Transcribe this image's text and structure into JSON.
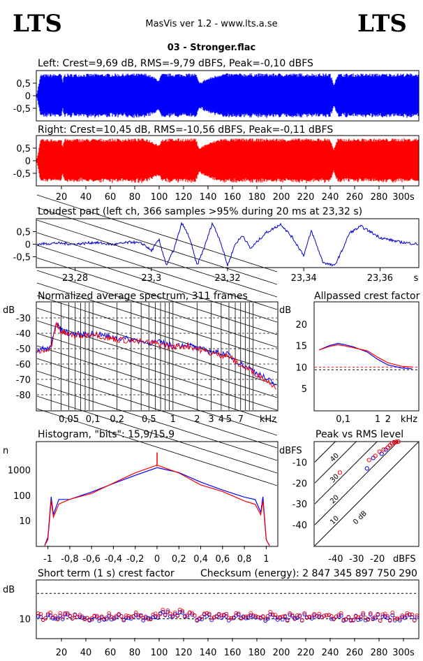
{
  "header": {
    "logo_left": "LTS",
    "logo_right": "LTS",
    "app_title": "MasVis ver 1.2 - www.lts.a.se",
    "filename": "03 - Stronger.flac"
  },
  "colors": {
    "left_channel": "#0000ff",
    "right_channel": "#ff0000",
    "loudest": "#0000cc",
    "dashed": "#000000"
  },
  "chart_data": [
    {
      "id": "left-waveform",
      "type": "area",
      "title": "Left: Crest=9,69 dB, RMS=-9,79 dBFS, Peak=-0,10 dBFS",
      "yticks": [
        "0,5",
        "0",
        "-0,5"
      ],
      "ylim": [
        -1,
        1
      ],
      "xlim": [
        0,
        312
      ],
      "series": [
        {
          "name": "Left",
          "envelope": [
            [
              0,
              0.1
            ],
            [
              3,
              0.93
            ],
            [
              20,
              0.96
            ],
            [
              21,
              0.55
            ],
            [
              22,
              0.95
            ],
            [
              90,
              0.97
            ],
            [
              100,
              0.7
            ],
            [
              102,
              0.96
            ],
            [
              130,
              0.97
            ],
            [
              133,
              0.55
            ],
            [
              137,
              0.7
            ],
            [
              150,
              0.97
            ],
            [
              240,
              0.97
            ],
            [
              243,
              0.5
            ],
            [
              246,
              0.96
            ],
            [
              312,
              0.97
            ]
          ]
        }
      ]
    },
    {
      "id": "right-waveform",
      "type": "area",
      "title": "Right: Crest=10,45 dB, RMS=-10,56 dBFS, Peak=-0,11 dBFS",
      "yticks": [
        "0,5",
        "0",
        "-0,5"
      ],
      "ylim": [
        -1,
        1
      ],
      "xlim": [
        0,
        312
      ],
      "xticks": [
        "20",
        "40",
        "60",
        "80",
        "100",
        "120",
        "140",
        "160",
        "180",
        "200",
        "220",
        "240",
        "260",
        "280",
        "300s"
      ],
      "series": [
        {
          "name": "Right",
          "envelope": [
            [
              0,
              0.1
            ],
            [
              3,
              0.93
            ],
            [
              20,
              0.96
            ],
            [
              21,
              0.55
            ],
            [
              22,
              0.95
            ],
            [
              90,
              0.97
            ],
            [
              100,
              0.7
            ],
            [
              102,
              0.96
            ],
            [
              130,
              0.97
            ],
            [
              133,
              0.55
            ],
            [
              137,
              0.7
            ],
            [
              150,
              0.97
            ],
            [
              240,
              0.97
            ],
            [
              243,
              0.5
            ],
            [
              246,
              0.96
            ],
            [
              312,
              0.97
            ]
          ]
        }
      ]
    },
    {
      "id": "loudest-part",
      "type": "line",
      "title": "Loudest part (left  ch, 366 samples >95% during 20 ms at 23,32 s)",
      "xlim": [
        23.27,
        23.37
      ],
      "ylim": [
        -1,
        1
      ],
      "yticks": [
        "0,5",
        "0",
        "-0,5"
      ],
      "xticks": [
        "23,28",
        "23,3",
        "23,32",
        "23,34",
        "23,36",
        "s"
      ],
      "series": [
        {
          "name": "left",
          "x": [
            23.27,
            23.275,
            23.28,
            23.285,
            23.29,
            23.295,
            23.298,
            23.3,
            23.302,
            23.304,
            23.306,
            23.308,
            23.31,
            23.312,
            23.314,
            23.316,
            23.318,
            23.32,
            23.322,
            23.324,
            23.326,
            23.33,
            23.334,
            23.337,
            23.34,
            23.342,
            23.345,
            23.348,
            23.35,
            23.352,
            23.355,
            23.358,
            23.36,
            23.365,
            23.37
          ],
          "y": [
            0.0,
            0.05,
            0.0,
            0.08,
            -0.02,
            0.1,
            0.0,
            -0.3,
            0.2,
            -0.95,
            -0.2,
            0.95,
            0.3,
            -0.95,
            -0.1,
            0.95,
            0.2,
            -0.95,
            0.0,
            0.4,
            -0.2,
            0.5,
            0.9,
            0.3,
            -0.5,
            0.6,
            -0.8,
            -0.98,
            -0.3,
            0.5,
            0.8,
            0.5,
            0.3,
            0.1,
            0.0
          ]
        }
      ]
    },
    {
      "id": "spectrum",
      "type": "line",
      "title": "Normalized average spectrum, 311 frames",
      "ylabel": "dB",
      "ylim": [
        -90,
        -20
      ],
      "yticks": [
        "-30",
        "-40",
        "-50",
        "-60",
        "-70",
        "-80"
      ],
      "xticks": [
        "0,05",
        "0,1",
        "0,2",
        "0,5",
        "1",
        "2",
        "3",
        "4",
        "5",
        "7",
        "kHz"
      ],
      "xlim_khz": [
        0.02,
        20
      ],
      "series": [
        {
          "name": "left",
          "x": [
            0.02,
            0.03,
            0.035,
            0.04,
            0.05,
            0.07,
            0.1,
            0.15,
            0.2,
            0.3,
            0.5,
            0.7,
            1,
            1.5,
            2,
            3,
            4,
            5,
            7,
            10,
            15,
            20
          ],
          "y": [
            -52,
            -48,
            -33,
            -38,
            -40,
            -41,
            -40,
            -42,
            -43,
            -44,
            -46,
            -46,
            -48,
            -47,
            -50,
            -52,
            -53,
            -54,
            -60,
            -64,
            -70,
            -74
          ]
        },
        {
          "name": "right",
          "x": [
            0.02,
            0.03,
            0.035,
            0.04,
            0.05,
            0.07,
            0.1,
            0.15,
            0.2,
            0.3,
            0.5,
            0.7,
            1,
            1.5,
            2,
            3,
            4,
            5,
            7,
            10,
            15,
            20
          ],
          "y": [
            -53,
            -49,
            -34,
            -39,
            -41,
            -42,
            -40,
            -43,
            -44,
            -45,
            -46,
            -47,
            -49,
            -48,
            -50,
            -53,
            -54,
            -55,
            -61,
            -65,
            -71,
            -75
          ]
        }
      ]
    },
    {
      "id": "allpassed-crest",
      "type": "line",
      "title": "Allpassed crest factor",
      "ylabel": "dB",
      "ylim": [
        0,
        25
      ],
      "yticks": [
        "20",
        "15",
        "10",
        "5"
      ],
      "xticks": [
        "0,1",
        "1",
        "2",
        "kHz"
      ],
      "series": [
        {
          "name": "left",
          "x": [
            0.02,
            0.04,
            0.07,
            0.1,
            0.2,
            0.5,
            1,
            2,
            5,
            10
          ],
          "y": [
            14,
            15,
            15.5,
            15.3,
            14.7,
            13.5,
            11.8,
            10.5,
            9.8,
            9.6
          ]
        },
        {
          "name": "right",
          "x": [
            0.02,
            0.04,
            0.07,
            0.1,
            0.2,
            0.5,
            1,
            2,
            5,
            10
          ],
          "y": [
            14,
            14.8,
            15.2,
            15,
            14.5,
            13.8,
            12.3,
            11,
            10.2,
            10
          ]
        }
      ]
    },
    {
      "id": "histogram",
      "type": "line",
      "title": "Histogram, \"bits\": 15,9/15,9",
      "ylabel": "n",
      "yticks": [
        "1000",
        "100",
        "10"
      ],
      "xticks": [
        "-1",
        "-0,8",
        "-0,6",
        "-0,4",
        "-0,2",
        "0",
        "0,2",
        "0,4",
        "0,6",
        "0,8",
        "1"
      ],
      "xlim": [
        -1.1,
        1.1
      ],
      "series": [
        {
          "name": "left",
          "x": [
            -1.0,
            -0.97,
            -0.95,
            -0.9,
            -0.8,
            -0.6,
            -0.4,
            -0.2,
            0,
            0.2,
            0.4,
            0.6,
            0.8,
            0.9,
            0.95,
            0.97,
            1.0
          ],
          "y": [
            2,
            80,
            20,
            60,
            80,
            150,
            300,
            700,
            1400,
            700,
            300,
            150,
            80,
            60,
            20,
            80,
            2
          ]
        },
        {
          "name": "right",
          "x": [
            -1.0,
            -0.97,
            -0.95,
            -0.9,
            -0.8,
            -0.6,
            -0.4,
            -0.2,
            0,
            0.2,
            0.4,
            0.6,
            0.8,
            0.9,
            0.95,
            0.97,
            1.0
          ],
          "y": [
            2,
            70,
            15,
            40,
            65,
            130,
            280,
            680,
            1400,
            680,
            280,
            130,
            65,
            40,
            15,
            70,
            2
          ]
        }
      ]
    },
    {
      "id": "peak-vs-rms",
      "type": "scatter",
      "title": "Peak vs RMS level",
      "ylabel": "dBFS",
      "xlabel": "dBFS",
      "yticks": [
        "-10",
        "-20",
        "-30",
        "-40"
      ],
      "xticks": [
        "-40",
        "-30",
        "-20"
      ],
      "diagonal_labels": [
        "40",
        "30",
        "20",
        "10",
        "0 dB"
      ],
      "series": [
        {
          "name": "left",
          "x": [
            -25,
            -22,
            -18,
            -16,
            -15,
            -14,
            -13,
            -12,
            -11,
            -10
          ],
          "y": [
            -13,
            -8,
            -6,
            -4,
            -3,
            -2,
            -1,
            -0.5,
            -0.3,
            -0.2
          ]
        },
        {
          "name": "right",
          "x": [
            -38,
            -24,
            -21,
            -19,
            -17,
            -15,
            -14,
            -13,
            -12,
            -11,
            -10
          ],
          "y": [
            -15,
            -9,
            -7,
            -5,
            -4,
            -3,
            -2,
            -1,
            -0.5,
            -0.3,
            -0.2
          ]
        }
      ]
    },
    {
      "id": "short-term-crest",
      "type": "scatter",
      "title": "Short term (1 s) crest factor",
      "checksum": "Checksum (energy):  2 847 345 897 750 290",
      "ylabel": "dB",
      "yticks": [
        "10"
      ],
      "xticks": [
        "20",
        "40",
        "60",
        "80",
        "100",
        "120",
        "140",
        "160",
        "180",
        "200",
        "220",
        "240",
        "260",
        "280",
        "300s"
      ],
      "xlim": [
        0,
        312
      ]
    }
  ]
}
